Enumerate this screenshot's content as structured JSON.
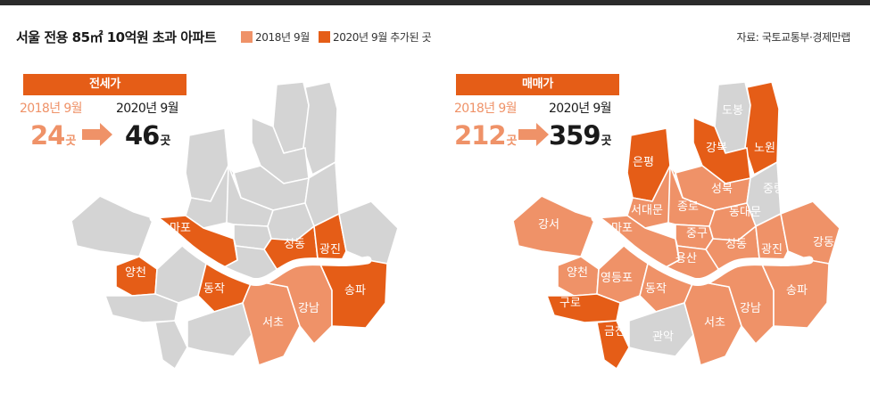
{
  "title": "서울 전용 85㎡ 10억원 초과 아파트",
  "legend": {
    "items": [
      {
        "label": "2018년 9월",
        "color": "#ef9268"
      },
      {
        "label": "2020년 9월 추가된 곳",
        "color": "#e55d17"
      }
    ]
  },
  "source": "자료: 국토교통부·경제만랩",
  "colors": {
    "grey": "#d4d4d4",
    "light": "#ef9268",
    "dark": "#e55d17",
    "river": "#ffffff"
  },
  "panels": [
    {
      "badge": "전세가",
      "from_label": "2018년 9월",
      "to_label": "2020년 9월",
      "from_value": "24",
      "to_value": "46",
      "unit": "곳",
      "districts": {
        "마포": "dark",
        "양천": "dark",
        "동작": "dark",
        "성동": "dark",
        "광진": "dark",
        "송파": "dark",
        "서초": "light",
        "강남": "light"
      }
    },
    {
      "badge": "매매가",
      "from_label": "2018년 9월",
      "to_label": "2020년 9월",
      "from_value": "212",
      "to_value": "359",
      "unit": "곳",
      "districts": {
        "은평": "dark",
        "강북": "dark",
        "노원": "dark",
        "구로": "dark",
        "금천": "dark",
        "도봉": "grey",
        "관악": "grey",
        "중랑": "grey",
        "성북": "light",
        "서대문": "light",
        "종로": "light",
        "동대문": "light",
        "마포": "light",
        "중구": "light",
        "용산": "light",
        "성동": "light",
        "광진": "light",
        "강동": "light",
        "강서": "light",
        "양천": "light",
        "영등포": "light",
        "동작": "light",
        "서초": "light",
        "강남": "light",
        "송파": "light"
      }
    }
  ]
}
